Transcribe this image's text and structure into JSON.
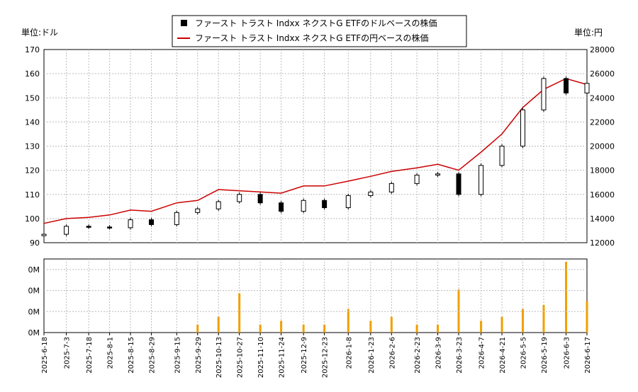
{
  "chart_data": [
    {
      "type": "candlestick+line",
      "legend": {
        "placement": "top-center",
        "entries": [
          {
            "label": "ファースト トラスト Indxx ネクストG ETFのドルベースの株価",
            "color": "#000000",
            "marker": "square"
          },
          {
            "label": "ファースト トラスト Indxx ネクストG ETFの円ベースの株価",
            "color": "#cc0000",
            "marker": "line"
          }
        ]
      },
      "left_unit_label": "単位:ドル",
      "right_unit_label": "単位:円",
      "y_left": {
        "ylim": [
          90,
          170
        ],
        "ticks": [
          "90",
          "100",
          "110",
          "120",
          "130",
          "140",
          "150",
          "160",
          "170"
        ]
      },
      "y_right": {
        "ylim": [
          12000,
          28000
        ],
        "ticks": [
          "12000",
          "14000",
          "16000",
          "18000",
          "20000",
          "22000",
          "24000",
          "26000",
          "28000"
        ]
      },
      "grid": true,
      "series": [
        {
          "name": "ファースト トラスト Indxx ネクストG ETFのドルベースの株価",
          "kind": "candlestick",
          "color": "#000000",
          "dates": [
            "2025-06-18",
            "2025-07-03",
            "2025-07-18",
            "2025-08-01",
            "2025-08-15",
            "2025-08-29",
            "2025-09-15",
            "2025-09-29",
            "2025-10-13",
            "2025-10-27",
            "2025-11-10",
            "2025-11-24",
            "2025-12-09",
            "2025-12-23",
            "2026-01-08",
            "2026-01-23",
            "2026-02-06",
            "2026-02-23",
            "2026-03-09",
            "2026-03-23",
            "2026-04-07",
            "2026-04-21",
            "2026-05-05",
            "2026-05-19",
            "2026-06-03",
            "2026-06-17"
          ],
          "close": [
            93.5,
            96.8,
            96.5,
            96.2,
            99.5,
            97.5,
            102.5,
            104,
            107,
            110,
            106.5,
            103,
            107.5,
            104.5,
            109.5,
            111,
            114.5,
            118,
            118.5,
            110,
            122,
            130,
            145,
            158,
            152,
            156
          ]
        },
        {
          "name": "ファースト トラスト Indxx ネクストG ETFの円ベースの株価",
          "kind": "line",
          "color": "#cc0000",
          "axis": "right",
          "dates": [
            "2025-06-18",
            "2025-07-03",
            "2025-07-18",
            "2025-08-01",
            "2025-08-15",
            "2025-08-29",
            "2025-09-15",
            "2025-09-29",
            "2025-10-13",
            "2025-10-27",
            "2025-11-10",
            "2025-11-24",
            "2025-12-09",
            "2025-12-23",
            "2026-01-08",
            "2026-01-23",
            "2026-02-06",
            "2026-02-23",
            "2026-03-09",
            "2026-03-23",
            "2026-04-07",
            "2026-04-21",
            "2026-05-05",
            "2026-05-19",
            "2026-06-03",
            "2026-06-17"
          ],
          "values": [
            13600,
            14000,
            14100,
            14300,
            14700,
            14600,
            15300,
            15500,
            16400,
            16300,
            16200,
            16100,
            16700,
            16700,
            17100,
            17500,
            17900,
            18200,
            18500,
            18000,
            19500,
            21000,
            23200,
            24700,
            25600,
            25100
          ]
        }
      ]
    },
    {
      "type": "bar",
      "title": "",
      "y_ticks": [
        "0M",
        "0M",
        "0M",
        "0M"
      ],
      "x_tick_labels": [
        "2025-6-18",
        "2025-7-3",
        "2025-7-18",
        "2025-8-1",
        "2025-8-15",
        "2025-8-29",
        "2025-9-15",
        "2025-9-29",
        "2025-10-13",
        "2025-10-27",
        "2025-11-10",
        "2025-11-24",
        "2025-12-9",
        "2025-12-23",
        "2026-1-8",
        "2026-1-23",
        "2026-2-6",
        "2026-2-23",
        "2026-3-9",
        "2026-3-23",
        "2026-4-7",
        "2026-4-21",
        "2026-5-5",
        "2026-5-19",
        "2026-6-3",
        "2026-6-17"
      ],
      "series": [
        {
          "color": "#f0a000",
          "dates": [
            "2025-06-18",
            "2025-07-03",
            "2025-07-18",
            "2025-08-01",
            "2025-08-15",
            "2025-08-29",
            "2025-09-15",
            "2025-09-29",
            "2025-10-13",
            "2025-10-27",
            "2025-11-10",
            "2025-11-24",
            "2025-12-09",
            "2025-12-23",
            "2026-01-08",
            "2026-01-23",
            "2026-02-06",
            "2026-02-23",
            "2026-03-09",
            "2026-03-23",
            "2026-04-07",
            "2026-04-21",
            "2026-05-05",
            "2026-05-19",
            "2026-06-03",
            "2026-06-17"
          ],
          "values": [
            0,
            0,
            0,
            0,
            0,
            0,
            0,
            0.01,
            0.02,
            0.05,
            0.01,
            0.015,
            0.01,
            0.01,
            0.03,
            0.015,
            0.02,
            0.01,
            0.01,
            0.055,
            0.015,
            0.02,
            0.03,
            0.035,
            0.09,
            0.04
          ]
        }
      ]
    }
  ]
}
